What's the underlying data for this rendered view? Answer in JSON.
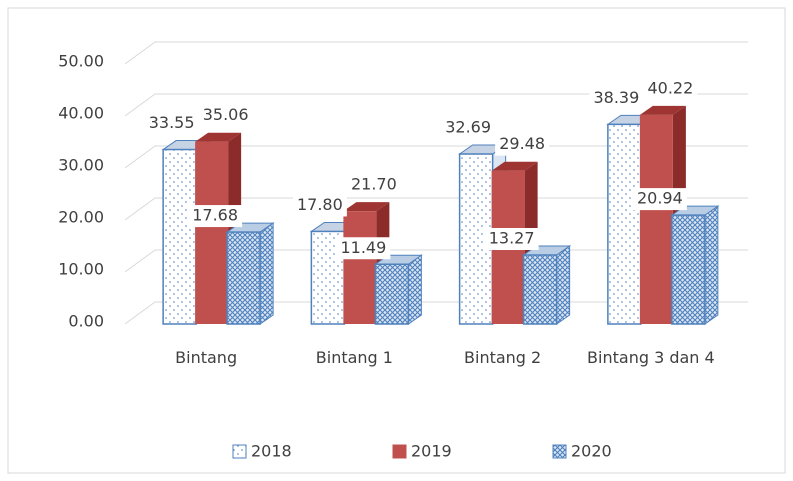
{
  "chart_data": {
    "type": "bar3d",
    "categories": [
      "Bintang",
      "Bintang 1",
      "Bintang 2",
      "Bintang 3 dan 4"
    ],
    "series": [
      {
        "name": "2018",
        "color": "#ffffff",
        "values": [
          33.55,
          17.8,
          32.69,
          38.39
        ],
        "value_labels": [
          "33.55",
          "17.80",
          "32.69",
          "38.39"
        ]
      },
      {
        "name": "2019",
        "color": "#c0504d",
        "values": [
          35.06,
          21.7,
          29.48,
          40.22
        ],
        "value_labels": [
          "35.06",
          "21.70",
          "29.48",
          "40.22"
        ]
      },
      {
        "name": "2020",
        "color": "#4f81bd",
        "values": [
          17.68,
          11.49,
          13.27,
          20.94
        ],
        "value_labels": [
          "17.68",
          "11.49",
          "13.27",
          "20.94"
        ]
      }
    ],
    "ylim": [
      0,
      50
    ],
    "yticks": [
      {
        "value": 0,
        "label": "0.00"
      },
      {
        "value": 10,
        "label": "10.00"
      },
      {
        "value": 20,
        "label": "20.00"
      },
      {
        "value": 30,
        "label": "30.00"
      },
      {
        "value": 40,
        "label": "40.00"
      },
      {
        "value": 50,
        "label": "50.00"
      }
    ],
    "grid": true,
    "legend": "bottom"
  }
}
